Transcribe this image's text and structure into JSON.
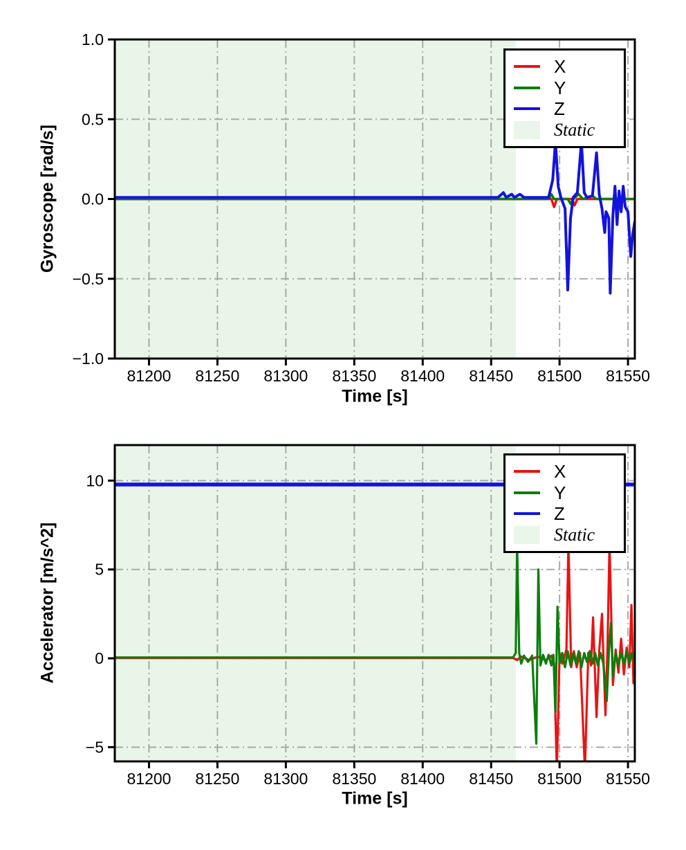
{
  "figure": {
    "background": "#ffffff",
    "grid_color": "#a9a9a9",
    "grid_style": "dash-dot",
    "spine_color": "#000000",
    "tick_color": "#000000"
  },
  "chart_data": [
    {
      "type": "line",
      "title": "",
      "xlabel": "Time [s]",
      "ylabel": "Gyroscope [rad/s]",
      "xlim": [
        81175,
        81555
      ],
      "ylim": [
        -1.0,
        1.0
      ],
      "xticks": [
        81200,
        81250,
        81300,
        81350,
        81400,
        81450,
        81500,
        81550
      ],
      "xtick_labels": [
        "81200",
        "81250",
        "81300",
        "81350",
        "81400",
        "81450",
        "81500",
        "81550"
      ],
      "yticks": [
        -1.0,
        -0.5,
        0.0,
        0.5,
        1.0
      ],
      "ytick_labels": [
        "−1.0",
        "−0.5",
        "0.0",
        "0.5",
        "1.0"
      ],
      "grid": true,
      "static_region": {
        "label": "Static",
        "x_start": 81175,
        "x_end": 81468,
        "color": "#e8f5e8"
      },
      "legend": {
        "position": "upper right",
        "entries": [
          {
            "label": "X",
            "color": "#ea1313",
            "type": "line"
          },
          {
            "label": "Y",
            "color": "#0b7e0b",
            "type": "line"
          },
          {
            "label": "Z",
            "color": "#1313dd",
            "type": "line"
          },
          {
            "label": "Static",
            "color": "#e9f6e9",
            "type": "patch"
          }
        ]
      },
      "series": [
        {
          "name": "X",
          "color": "#ea1313",
          "linewidth": 3.5,
          "points": [
            [
              81175,
              0
            ],
            [
              81494,
              0
            ],
            [
              81496,
              -0.05
            ],
            [
              81498,
              0
            ],
            [
              81509,
              0
            ],
            [
              81511,
              -0.04
            ],
            [
              81513,
              0
            ],
            [
              81555,
              0
            ]
          ]
        },
        {
          "name": "Y",
          "color": "#0b7e0b",
          "linewidth": 3.5,
          "points": [
            [
              81175,
              0
            ],
            [
              81492,
              0
            ],
            [
              81494,
              0.03
            ],
            [
              81496,
              0
            ],
            [
              81506,
              0
            ],
            [
              81508,
              -0.03
            ],
            [
              81510,
              0
            ],
            [
              81514,
              0.03
            ],
            [
              81517,
              0
            ],
            [
              81524,
              0.02
            ],
            [
              81527,
              0
            ],
            [
              81555,
              0
            ]
          ]
        },
        {
          "name": "Z",
          "color": "#1313dd",
          "linewidth": 4,
          "points": [
            [
              81175,
              0.01
            ],
            [
              81455,
              0.01
            ],
            [
              81459,
              0.04
            ],
            [
              81461,
              0.01
            ],
            [
              81465,
              0.03
            ],
            [
              81467,
              0.01
            ],
            [
              81471,
              0.03
            ],
            [
              81474,
              0.01
            ],
            [
              81492,
              0.01
            ],
            [
              81495,
              0.12
            ],
            [
              81497,
              0.36
            ],
            [
              81499,
              0.08
            ],
            [
              81501,
              0.01
            ],
            [
              81504,
              -0.06
            ],
            [
              81506,
              -0.57
            ],
            [
              81508,
              -0.12
            ],
            [
              81510,
              0.01
            ],
            [
              81513,
              0.04
            ],
            [
              81516,
              0.36
            ],
            [
              81518,
              0.04
            ],
            [
              81520,
              0.01
            ],
            [
              81524,
              0.02
            ],
            [
              81527,
              0.29
            ],
            [
              81529,
              0.03
            ],
            [
              81531,
              -0.06
            ],
            [
              81533,
              -0.21
            ],
            [
              81534,
              -0.08
            ],
            [
              81536,
              -0.12
            ],
            [
              81537,
              -0.59
            ],
            [
              81539,
              -0.1
            ],
            [
              81540.5,
              0.08
            ],
            [
              81542,
              -0.16
            ],
            [
              81543.5,
              0.05
            ],
            [
              81545,
              -0.08
            ],
            [
              81546.5,
              0.08
            ],
            [
              81548,
              -0.05
            ],
            [
              81550,
              -0.08
            ],
            [
              81552,
              -0.36
            ],
            [
              81553.5,
              -0.22
            ],
            [
              81555,
              -0.14
            ]
          ]
        }
      ]
    },
    {
      "type": "line",
      "title": "",
      "xlabel": "Time [s]",
      "ylabel": "Accelerator [m/s^2]",
      "xlim": [
        81175,
        81555
      ],
      "ylim": [
        -5.8,
        12.0
      ],
      "xticks": [
        81200,
        81250,
        81300,
        81350,
        81400,
        81450,
        81500,
        81550
      ],
      "xtick_labels": [
        "81200",
        "81250",
        "81300",
        "81350",
        "81400",
        "81450",
        "81500",
        "81550"
      ],
      "yticks": [
        -5,
        0,
        5,
        10
      ],
      "ytick_labels": [
        "−5",
        "0",
        "5",
        "10"
      ],
      "grid": true,
      "static_region": {
        "label": "Static",
        "x_start": 81175,
        "x_end": 81468,
        "color": "#e8f5e8"
      },
      "legend": {
        "position": "upper right",
        "entries": [
          {
            "label": "X",
            "color": "#ea1313",
            "type": "line"
          },
          {
            "label": "Y",
            "color": "#0b7e0b",
            "type": "line"
          },
          {
            "label": "Z",
            "color": "#1313dd",
            "type": "line"
          },
          {
            "label": "Static",
            "color": "#e9f6e9",
            "type": "patch"
          }
        ]
      },
      "series": [
        {
          "name": "X",
          "color": "#ea1313",
          "linewidth": 3.2,
          "points": [
            [
              81175,
              0.02
            ],
            [
              81466,
              0.02
            ],
            [
              81469,
              -0.1
            ],
            [
              81472,
              0.1
            ],
            [
              81478,
              -0.1
            ],
            [
              81484,
              0.1
            ],
            [
              81490,
              -0.1
            ],
            [
              81494,
              0.15
            ],
            [
              81496,
              -0.3
            ],
            [
              81498,
              -6.3
            ],
            [
              81500,
              0.3
            ],
            [
              81502,
              -0.3
            ],
            [
              81505,
              0.5
            ],
            [
              81506.5,
              6.5
            ],
            [
              81508.5,
              -0.5
            ],
            [
              81510.5,
              0.4
            ],
            [
              81512.5,
              -0.5
            ],
            [
              81515,
              0.3
            ],
            [
              81518.5,
              -6.3
            ],
            [
              81521,
              0.3
            ],
            [
              81523,
              -0.4
            ],
            [
              81524.5,
              2.3
            ],
            [
              81527,
              -3.3
            ],
            [
              81529,
              0.4
            ],
            [
              81531,
              2.5
            ],
            [
              81533.5,
              -3.2
            ],
            [
              81535,
              0.5
            ],
            [
              81536.5,
              6.5
            ],
            [
              81539,
              -1.5
            ],
            [
              81541,
              0.5
            ],
            [
              81543,
              -0.8
            ],
            [
              81545,
              1.1
            ],
            [
              81547,
              -0.9
            ],
            [
              81549,
              0.6
            ],
            [
              81551,
              -0.5
            ],
            [
              81552.5,
              3.0
            ],
            [
              81554,
              -1.4
            ],
            [
              81555,
              0.3
            ]
          ]
        },
        {
          "name": "Y",
          "color": "#0b7e0b",
          "linewidth": 3.2,
          "points": [
            [
              81175,
              0.05
            ],
            [
              81466,
              0.05
            ],
            [
              81468,
              0.3
            ],
            [
              81469,
              6.4
            ],
            [
              81470.5,
              0.3
            ],
            [
              81472,
              -0.3
            ],
            [
              81474,
              0.15
            ],
            [
              81477,
              -0.2
            ],
            [
              81480,
              0.15
            ],
            [
              81483,
              -4.8
            ],
            [
              81484.5,
              5.0
            ],
            [
              81486,
              -0.4
            ],
            [
              81488,
              0.2
            ],
            [
              81490,
              -0.3
            ],
            [
              81492,
              0.2
            ],
            [
              81494,
              -0.4
            ],
            [
              81495.5,
              0.2
            ],
            [
              81497,
              -3.0
            ],
            [
              81498.5,
              2.9
            ],
            [
              81500,
              -0.3
            ],
            [
              81502,
              0.3
            ],
            [
              81504,
              -0.5
            ],
            [
              81506,
              0.4
            ],
            [
              81508,
              -0.4
            ],
            [
              81510,
              0.3
            ],
            [
              81512,
              -0.3
            ],
            [
              81514,
              0.4
            ],
            [
              81516,
              -0.5
            ],
            [
              81518,
              0.3
            ],
            [
              81520,
              -0.2
            ],
            [
              81522,
              0.4
            ],
            [
              81524,
              -0.3
            ],
            [
              81526,
              0.3
            ],
            [
              81528,
              -0.4
            ],
            [
              81530,
              0.3
            ],
            [
              81532,
              -0.3
            ],
            [
              81534.5,
              -2.4
            ],
            [
              81536,
              0.3
            ],
            [
              81537.5,
              2.0
            ],
            [
              81539,
              -1.0
            ],
            [
              81541,
              0.3
            ],
            [
              81543,
              -0.4
            ],
            [
              81545,
              0.3
            ],
            [
              81547,
              -0.3
            ],
            [
              81549,
              0.4
            ],
            [
              81551,
              -0.3
            ],
            [
              81553,
              0.3
            ],
            [
              81555,
              -0.2
            ]
          ]
        },
        {
          "name": "Z",
          "color": "#1313dd",
          "linewidth": 5.5,
          "points": [
            [
              81175,
              9.78
            ],
            [
              81555,
              9.78
            ]
          ]
        }
      ]
    }
  ],
  "layout_note": "two stacked subplots sharing time axis"
}
